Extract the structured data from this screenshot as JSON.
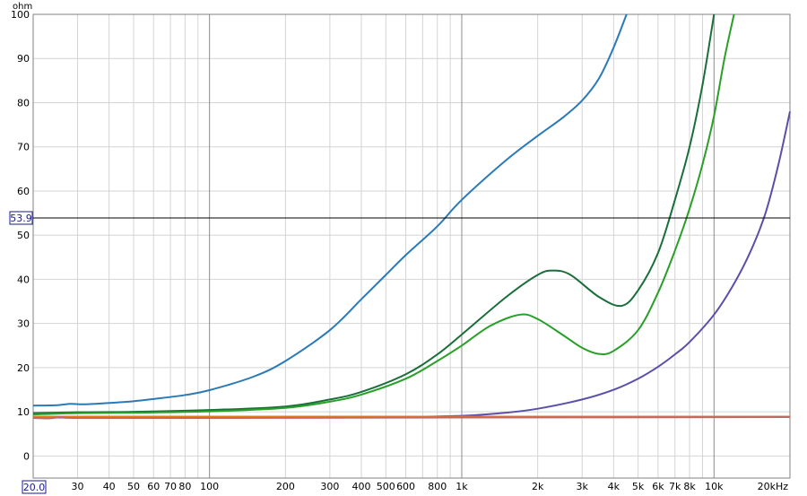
{
  "chart_data": {
    "type": "line",
    "title": "",
    "xlabel": "",
    "ylabel": "",
    "y_unit": "ohm",
    "x_scale": "log",
    "xlim": [
      20,
      20000
    ],
    "ylim": [
      -5,
      100
    ],
    "grid": true,
    "x_tick_labels": [
      {
        "v": 30,
        "t": "30"
      },
      {
        "v": 40,
        "t": "40"
      },
      {
        "v": 50,
        "t": "50"
      },
      {
        "v": 60,
        "t": "60"
      },
      {
        "v": 70,
        "t": "70"
      },
      {
        "v": 80,
        "t": "80"
      },
      {
        "v": 100,
        "t": "100"
      },
      {
        "v": 200,
        "t": "200"
      },
      {
        "v": 300,
        "t": "300"
      },
      {
        "v": 400,
        "t": "400"
      },
      {
        "v": 500,
        "t": "500"
      },
      {
        "v": 600,
        "t": "600"
      },
      {
        "v": 800,
        "t": "800"
      },
      {
        "v": 1000,
        "t": "1k"
      },
      {
        "v": 2000,
        "t": "2k"
      },
      {
        "v": 3000,
        "t": "3k"
      },
      {
        "v": 4000,
        "t": "4k"
      },
      {
        "v": 5000,
        "t": "5k"
      },
      {
        "v": 6000,
        "t": "6k"
      },
      {
        "v": 7000,
        "t": "7k"
      },
      {
        "v": 8000,
        "t": "8k"
      },
      {
        "v": 10000,
        "t": "10k"
      },
      {
        "v": 20000,
        "t": "20kHz"
      }
    ],
    "x_start_label": "20.0",
    "y_ticks": [
      0,
      10,
      20,
      30,
      40,
      50,
      60,
      70,
      80,
      90,
      100
    ],
    "cursor": {
      "value": 53.9,
      "label": "53.9"
    },
    "series": [
      {
        "color": "#2a7ab8",
        "points": [
          [
            20,
            11.4
          ],
          [
            25,
            11.5
          ],
          [
            28,
            11.8
          ],
          [
            32,
            11.7
          ],
          [
            40,
            12.0
          ],
          [
            50,
            12.4
          ],
          [
            60,
            12.9
          ],
          [
            80,
            13.8
          ],
          [
            100,
            14.9
          ],
          [
            150,
            18.0
          ],
          [
            200,
            21.5
          ],
          [
            300,
            28.5
          ],
          [
            400,
            35.5
          ],
          [
            500,
            41.0
          ],
          [
            600,
            45.5
          ],
          [
            800,
            52.0
          ],
          [
            1000,
            58.0
          ],
          [
            1500,
            67.0
          ],
          [
            2000,
            72.5
          ],
          [
            2500,
            76.5
          ],
          [
            3000,
            80.5
          ],
          [
            3500,
            85.5
          ],
          [
            4000,
            92.5
          ],
          [
            4500,
            100.0
          ]
        ]
      },
      {
        "color": "#1a6e3a",
        "points": [
          [
            20,
            9.7
          ],
          [
            30,
            9.9
          ],
          [
            50,
            10.0
          ],
          [
            100,
            10.4
          ],
          [
            200,
            11.2
          ],
          [
            300,
            12.8
          ],
          [
            400,
            14.5
          ],
          [
            600,
            18.5
          ],
          [
            800,
            23.0
          ],
          [
            1000,
            27.5
          ],
          [
            1500,
            36.0
          ],
          [
            2000,
            41.0
          ],
          [
            2300,
            42.0
          ],
          [
            2700,
            41.0
          ],
          [
            3500,
            36.0
          ],
          [
            4300,
            34.0
          ],
          [
            5000,
            37.5
          ],
          [
            6000,
            46.0
          ],
          [
            7000,
            58.0
          ],
          [
            8000,
            70.0
          ],
          [
            9000,
            84.0
          ],
          [
            10000,
            100.0
          ]
        ]
      },
      {
        "color": "#28a028",
        "points": [
          [
            20,
            9.4
          ],
          [
            30,
            9.7
          ],
          [
            50,
            9.8
          ],
          [
            100,
            10.1
          ],
          [
            200,
            10.9
          ],
          [
            300,
            12.3
          ],
          [
            400,
            13.9
          ],
          [
            600,
            17.5
          ],
          [
            800,
            21.5
          ],
          [
            1000,
            25.0
          ],
          [
            1300,
            29.5
          ],
          [
            1700,
            32.0
          ],
          [
            2000,
            31.0
          ],
          [
            2500,
            27.5
          ],
          [
            3000,
            24.5
          ],
          [
            3500,
            23.1
          ],
          [
            4000,
            23.8
          ],
          [
            5000,
            28.5
          ],
          [
            6000,
            37.0
          ],
          [
            7000,
            46.5
          ],
          [
            8000,
            56.0
          ],
          [
            9000,
            66.0
          ],
          [
            10000,
            77.0
          ],
          [
            11000,
            90.0
          ],
          [
            12000,
            100.0
          ]
        ]
      },
      {
        "color": "#5a50a8",
        "points": [
          [
            20,
            8.7
          ],
          [
            100,
            8.7
          ],
          [
            500,
            8.8
          ],
          [
            1000,
            9.1
          ],
          [
            1500,
            9.8
          ],
          [
            2000,
            10.7
          ],
          [
            3000,
            12.8
          ],
          [
            4000,
            15.0
          ],
          [
            5000,
            17.5
          ],
          [
            6000,
            20.2
          ],
          [
            7000,
            23.0
          ],
          [
            8000,
            25.8
          ],
          [
            10000,
            32.0
          ],
          [
            12000,
            39.0
          ],
          [
            14000,
            46.5
          ],
          [
            16000,
            55.0
          ],
          [
            18000,
            66.0
          ],
          [
            20000,
            78.0
          ]
        ]
      },
      {
        "color": "#e07818",
        "points": [
          [
            20,
            8.9
          ],
          [
            100,
            8.9
          ],
          [
            1000,
            8.9
          ],
          [
            10000,
            8.9
          ],
          [
            20000,
            8.9
          ]
        ]
      },
      {
        "color": "#c06868",
        "points": [
          [
            20,
            8.6
          ],
          [
            23,
            8.5
          ],
          [
            26,
            8.8
          ],
          [
            30,
            8.6
          ],
          [
            100,
            8.6
          ],
          [
            1000,
            8.7
          ],
          [
            20000,
            8.8
          ]
        ]
      }
    ]
  }
}
